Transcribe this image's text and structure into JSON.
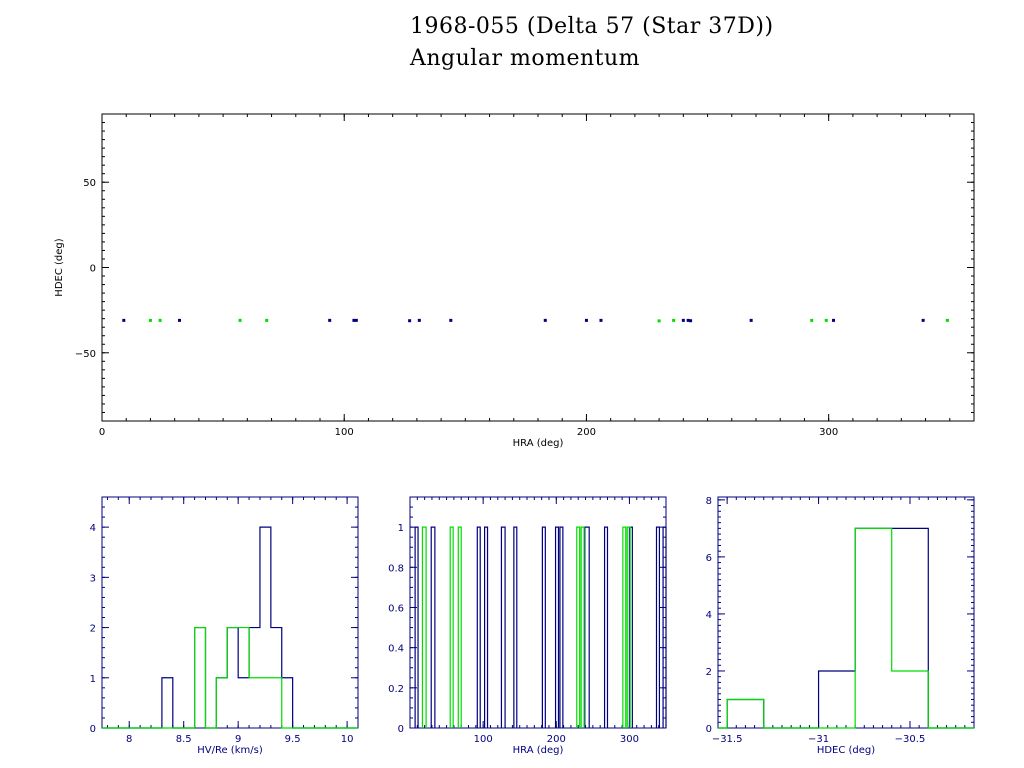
{
  "header": {
    "title": "1968-055 (Delta 57 (Star 37D))",
    "subtitle": "Angular momentum"
  },
  "colors": {
    "blue": "#000080",
    "green": "#00dd00",
    "axis": "#000080",
    "scatter_text": "#000000"
  },
  "chart_data": [
    {
      "type": "scatter",
      "xlabel": "HRA (deg)",
      "ylabel": "HDEC (deg)",
      "xlim": [
        0,
        360
      ],
      "ylim": [
        -90,
        90
      ],
      "xticks": [
        "0",
        "100",
        "200",
        "300"
      ],
      "yticks": [
        "50",
        "0",
        "-50"
      ],
      "series": [
        {
          "color": "blue",
          "x": [
            9,
            32,
            94,
            104,
            105,
            127,
            131,
            144,
            183,
            200,
            206,
            240,
            242,
            243,
            268,
            302,
            339
          ],
          "y": [
            -31,
            -31,
            -31,
            -31,
            -31,
            -31.2,
            -31,
            -31,
            -31,
            -31,
            -31,
            -31,
            -31,
            -31.2,
            -31,
            -31,
            -31
          ]
        },
        {
          "color": "green",
          "x": [
            20,
            24,
            57,
            68,
            230,
            236,
            293,
            299,
            349
          ],
          "y": [
            -31,
            -31,
            -31,
            -31,
            -31.3,
            -31,
            -31,
            -31,
            -31
          ]
        }
      ]
    },
    {
      "type": "histogram",
      "xlabel": "HV/Re (km/s)",
      "xlim": [
        7.75,
        10.1
      ],
      "ylim": [
        0,
        4.6
      ],
      "xticks": [
        "8",
        "8.5",
        "9",
        "9.5",
        "10"
      ],
      "yticks": [
        "0",
        "1",
        "2",
        "3",
        "4"
      ],
      "series": [
        {
          "color": "blue",
          "edges": [
            7.75,
            8.3,
            8.4,
            8.6,
            8.7,
            8.8,
            8.9,
            9.0,
            9.1,
            9.2,
            9.3,
            9.4,
            9.5,
            10.1
          ],
          "counts": [
            0,
            1,
            0,
            2,
            0,
            1,
            2,
            1,
            2,
            4,
            2,
            1,
            0
          ]
        },
        {
          "color": "green",
          "edges": [
            7.75,
            8.6,
            8.7,
            8.8,
            8.9,
            9.0,
            9.1,
            9.4,
            10.1
          ],
          "counts": [
            0,
            2,
            0,
            1,
            2,
            2,
            1,
            0
          ]
        }
      ]
    },
    {
      "type": "histogram",
      "xlabel": "HRA (deg)",
      "xlim": [
        0,
        350
      ],
      "ylim": [
        0,
        1.15
      ],
      "xticks": [
        "100",
        "200",
        "300"
      ],
      "yticks": [
        "0",
        "0.2",
        "0.4",
        "0.6",
        "0.8",
        "1"
      ],
      "series": [
        {
          "color": "blue",
          "spikes": [
            [
              7,
              11
            ],
            [
              29,
              34
            ],
            [
              92,
              96
            ],
            [
              102,
              106
            ],
            [
              125,
              130
            ],
            [
              142,
              146
            ],
            [
              181,
              185
            ],
            [
              199,
              203
            ],
            [
              205,
              209
            ],
            [
              239,
              245
            ],
            [
              266,
              270
            ],
            [
              300,
              304
            ],
            [
              337,
              341
            ],
            [
              346,
              350
            ]
          ]
        },
        {
          "color": "green",
          "spikes": [
            [
              17,
              22
            ],
            [
              55,
              59
            ],
            [
              66,
              70
            ],
            [
              228,
              232
            ],
            [
              234,
              238
            ],
            [
              291,
              295
            ],
            [
              297,
              301
            ]
          ]
        }
      ]
    },
    {
      "type": "histogram",
      "xlabel": "HDEC (deg)",
      "xlim": [
        -31.55,
        -30.15
      ],
      "ylim": [
        0,
        8.1
      ],
      "xticks": [
        "-31.5",
        "-31",
        "-30.5"
      ],
      "yticks": [
        "0",
        "2",
        "4",
        "6",
        "8"
      ],
      "series": [
        {
          "color": "blue",
          "edges": [
            -31.55,
            -31.5,
            -31.3,
            -31.0,
            -30.8,
            -30.6,
            -30.4,
            -30.15
          ],
          "counts": [
            0,
            1,
            0,
            2,
            7,
            7,
            0
          ]
        },
        {
          "color": "green",
          "edges": [
            -31.55,
            -31.5,
            -31.3,
            -30.8,
            -30.6,
            -30.4,
            -30.15
          ],
          "counts": [
            0,
            1,
            0,
            7,
            2,
            0
          ]
        }
      ]
    }
  ]
}
